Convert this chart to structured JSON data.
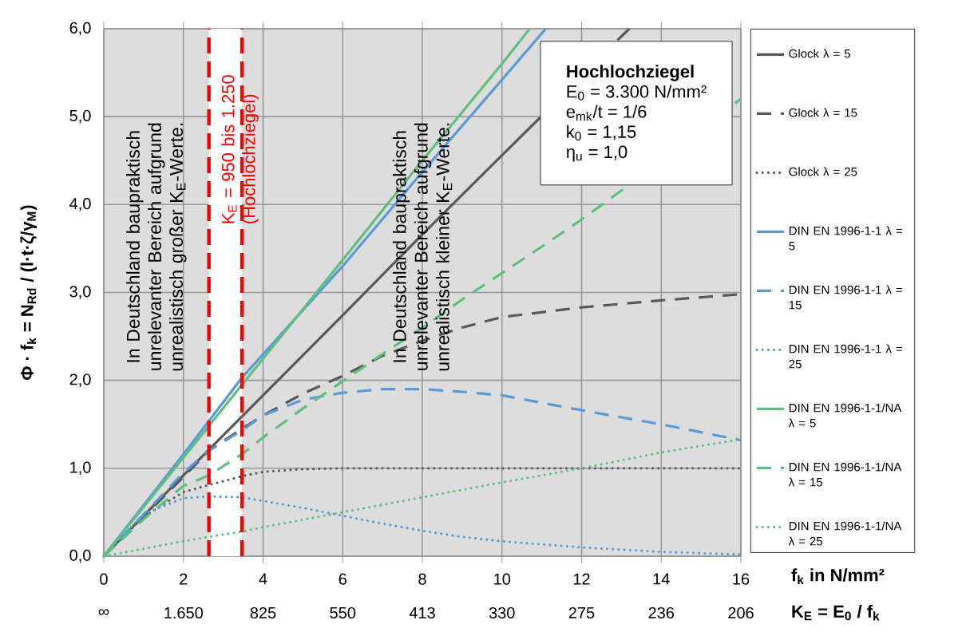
{
  "chart_data": {
    "type": "line",
    "xlabel": "f$_{k}$ in N/mm²",
    "ylabel": "Φ · f$_{k}$ = N$_{Rd}$ / (l·t·ζ/γ$_{M}$)",
    "xlim": [
      0,
      16
    ],
    "xticks": [
      0,
      2,
      4,
      6,
      8,
      10,
      12,
      14,
      16
    ],
    "ylim": [
      0,
      6
    ],
    "yticks": [
      {
        "value": 0,
        "label": "0,0"
      },
      {
        "value": 1,
        "label": "1,0"
      },
      {
        "value": 2,
        "label": "2,0"
      },
      {
        "value": 3,
        "label": "3,0"
      },
      {
        "value": 4,
        "label": "4,0"
      },
      {
        "value": 5,
        "label": "5,0"
      },
      {
        "value": 6,
        "label": "6,0"
      }
    ],
    "grid": true,
    "legend": "right",
    "marker": "none",
    "series": [
      {
        "name": "Glock λ = 5",
        "color": "#595959",
        "line_style": "solid",
        "x": [
          0,
          2,
          4,
          6,
          8,
          10,
          10.96,
          12,
          12.9,
          13.2
        ],
        "values": [
          0,
          0.92,
          1.83,
          2.74,
          3.66,
          4.56,
          4.99,
          null,
          5.87,
          6.0
        ]
      },
      {
        "name": "Glock λ = 15",
        "color": "#595959",
        "line_style": "dashed",
        "x": [
          0,
          1,
          2,
          2.64,
          3.47,
          4,
          5,
          6,
          7,
          8,
          9,
          10,
          12,
          14,
          16
        ],
        "values": [
          0,
          0.45,
          0.9,
          1.2,
          1.45,
          1.6,
          1.85,
          2.05,
          2.28,
          2.45,
          2.6,
          2.72,
          2.83,
          2.91,
          2.98
        ]
      },
      {
        "name": "Glock λ = 25",
        "color": "#595959",
        "line_style": "dotted",
        "x": [
          0,
          1,
          2,
          2.64,
          3.47,
          4,
          5,
          6,
          8,
          10,
          12,
          14,
          16
        ],
        "values": [
          0,
          0.45,
          0.73,
          0.81,
          0.91,
          0.96,
          0.99,
          1.0,
          1.0,
          1.0,
          1.0,
          1.0,
          1.0
        ]
      },
      {
        "name": "DIN EN 1996-1-1 λ = 5",
        "color": "#5b9bd5",
        "line_style": "solid",
        "x": [
          0,
          2,
          3.47,
          6,
          8,
          10,
          11.1
        ],
        "values": [
          0,
          1.16,
          2.03,
          3.3,
          4.37,
          5.42,
          6.0
        ]
      },
      {
        "name": "DIN EN 1996-1-1 λ = 15",
        "color": "#5b9bd5",
        "line_style": "dashed",
        "x": [
          0,
          2,
          2.64,
          3.47,
          4,
          5,
          6,
          7,
          8,
          9,
          10,
          12,
          14,
          16
        ],
        "values": [
          0,
          0.95,
          1.2,
          1.43,
          1.6,
          1.78,
          1.86,
          1.9,
          1.9,
          1.87,
          1.83,
          1.66,
          1.5,
          1.32
        ]
      },
      {
        "name": "DIN EN 1996-1-1 λ = 25",
        "color": "#5b9bd5",
        "line_style": "dotted",
        "x": [
          0,
          1,
          2,
          2.64,
          3.47,
          4,
          5,
          6,
          7,
          8,
          9,
          10,
          12,
          14,
          16
        ],
        "values": [
          0,
          0.48,
          0.66,
          0.68,
          0.67,
          0.63,
          0.55,
          0.46,
          0.37,
          0.29,
          0.22,
          0.17,
          0.1,
          0.05,
          0.02
        ]
      },
      {
        "name": "DIN EN 1996-1-1/NA λ = 5",
        "color": "#5fbf80",
        "line_style": "solid",
        "x": [
          0,
          2,
          3.47,
          6,
          8,
          10,
          10.7
        ],
        "values": [
          0,
          1.12,
          1.95,
          3.37,
          4.5,
          5.6,
          6.0
        ]
      },
      {
        "name": "DIN EN 1996-1-1/NA λ = 15",
        "color": "#5fbf80",
        "line_style": "dashed",
        "x": [
          0,
          1,
          2,
          2.64,
          3.47,
          4,
          5,
          6,
          7,
          8,
          9,
          10,
          11,
          12,
          13,
          13.15,
          14,
          15.85,
          16
        ],
        "values": [
          0,
          0.42,
          0.8,
          0.92,
          1.16,
          1.35,
          1.68,
          1.99,
          2.3,
          2.6,
          2.92,
          3.22,
          3.52,
          3.83,
          4.16,
          4.21,
          null,
          5.15,
          5.2
        ]
      },
      {
        "name": "DIN EN 1996-1-1/NA λ = 25",
        "color": "#5fbf80",
        "line_style": "dotted",
        "x": [
          0,
          2,
          2.64,
          3.47,
          4,
          6,
          8,
          10,
          12,
          14,
          16
        ],
        "values": [
          0,
          0.17,
          0.22,
          0.28,
          0.33,
          0.5,
          0.67,
          0.84,
          1.0,
          1.18,
          1.33
        ]
      }
    ],
    "ref_lines": [
      {
        "axis": "x",
        "value": 2.64,
        "color": "#ff0000",
        "line_style": "dashed"
      },
      {
        "axis": "x",
        "value": 3.47,
        "color": "#ff0000",
        "line_style": "dashed"
      }
    ],
    "bands": [
      {
        "axis": "x",
        "from": 2.64,
        "to": 3.47,
        "color": "#ffffff",
        "label": "K$_{E}$ = 950 bis 1.250 (Hochlochziegel)"
      }
    ],
    "annotations": [
      "In Deutschland baupraktisch unrelevanter Bereich aufgrund unrealistisch großer K$_{E}$-Werte.",
      "In Deutschland baupraktisch unrelevanter Bereich aufgrund unrealistisch kleiner K$_{E}$-Werte.",
      "Hochlochziegel",
      "E$_{0}$ = 3.300 N/mm²",
      "e$_{mk}$/t = 1/6",
      "k$_{0}$ = 1,15",
      "η$_{u}$ = 1,0",
      "∞",
      "1.650",
      "825",
      "550",
      "413",
      "330",
      "275",
      "236",
      "206",
      "K$_{E}$ = E$_{0}$ / f$_{k}$"
    ]
  }
}
